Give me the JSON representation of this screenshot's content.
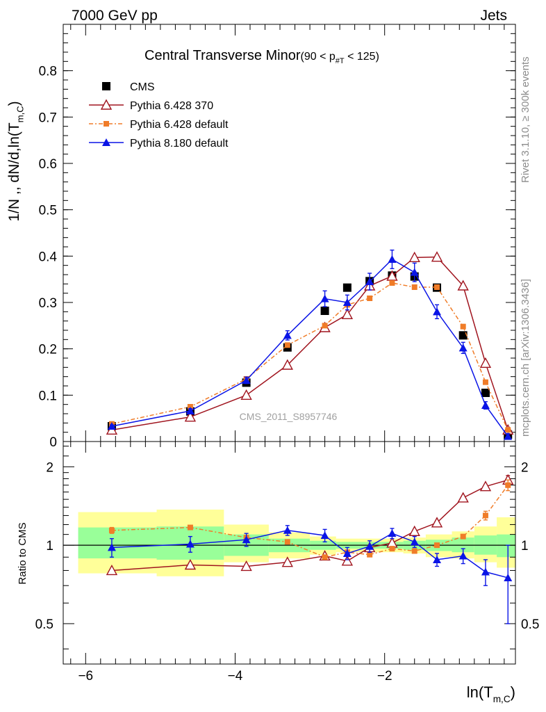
{
  "header": {
    "left": "7000 GeV pp",
    "right": "Jets"
  },
  "side_text": {
    "rivet": "Rivet 3.1.10, ≥ 300k events",
    "mcplots": "mcplots.cern.ch [arXiv:1306.3436]"
  },
  "watermark": "CMS_2011_S8957746",
  "colors": {
    "cms": "#000000",
    "p6_370": "#a0141e",
    "p6_default": "#f07c28",
    "p8_default": "#0a14e6",
    "band_inner": "#99ff99",
    "band_outer": "#ffff99"
  },
  "chart_data": [
    {
      "type": "line",
      "title": "Central Transverse Minor",
      "title_suffix": "(90 < p_#T  < 125)",
      "xlabel": "ln(T_m,C)",
      "ylabel": "1/N ,, dN/d,ln(T_m,C)",
      "xlim": [
        -6.3,
        -0.25
      ],
      "ylim": [
        0,
        0.9
      ],
      "yticks": [
        0,
        0.1,
        0.2,
        0.3,
        0.4,
        0.5,
        0.6,
        0.7,
        0.8
      ],
      "ytick_labels": [
        "0",
        "0.1",
        "0.2",
        "0.3",
        "0.4",
        "0.5",
        "0.6",
        "0.7",
        "0.8"
      ],
      "legend_position": "top-left",
      "series": [
        {
          "name": "CMS",
          "marker": "square",
          "x": [
            -5.65,
            -4.6,
            -3.85,
            -3.3,
            -2.8,
            -2.5,
            -2.2,
            -1.9,
            -1.6,
            -1.3,
            -0.95,
            -0.65,
            -0.35
          ],
          "y": [
            0.033,
            0.065,
            0.127,
            0.203,
            0.282,
            0.332,
            0.346,
            0.358,
            0.356,
            0.332,
            0.229,
            0.105,
            0.015
          ],
          "err": [
            0,
            0,
            0,
            0,
            0,
            0,
            0,
            0,
            0,
            0,
            0,
            0,
            0
          ]
        },
        {
          "name": "Pythia 6.428 370",
          "marker": "open-triangle",
          "x": [
            -5.65,
            -4.6,
            -3.85,
            -3.3,
            -2.8,
            -2.5,
            -2.2,
            -1.9,
            -1.6,
            -1.3,
            -0.95,
            -0.65,
            -0.35
          ],
          "y": [
            0.025,
            0.053,
            0.1,
            0.165,
            0.246,
            0.274,
            0.336,
            0.357,
            0.397,
            0.398,
            0.336,
            0.169,
            0.025
          ],
          "err": [
            0,
            0,
            0,
            0,
            0,
            0,
            0,
            0,
            0,
            0,
            0,
            0,
            0
          ]
        },
        {
          "name": "Pythia 6.428 default",
          "marker": "small-square",
          "dashed": true,
          "x": [
            -5.65,
            -4.6,
            -3.85,
            -3.3,
            -2.8,
            -2.5,
            -2.2,
            -1.9,
            -1.6,
            -1.3,
            -0.95,
            -0.65,
            -0.35
          ],
          "y": [
            0.038,
            0.075,
            0.135,
            0.208,
            0.25,
            0.295,
            0.309,
            0.342,
            0.333,
            0.333,
            0.248,
            0.128,
            0.025
          ],
          "err": [
            0,
            0,
            0,
            0,
            0,
            0,
            0,
            0,
            0,
            0,
            0,
            0,
            0
          ]
        },
        {
          "name": "Pythia 8.180 default",
          "marker": "triangle",
          "x": [
            -5.65,
            -4.6,
            -3.85,
            -3.3,
            -2.8,
            -2.5,
            -2.2,
            -1.9,
            -1.6,
            -1.3,
            -0.95,
            -0.65,
            -0.35
          ],
          "y": [
            0.033,
            0.066,
            0.132,
            0.229,
            0.308,
            0.3,
            0.345,
            0.393,
            0.365,
            0.28,
            0.202,
            0.078,
            0.011
          ],
          "err": [
            0.003,
            0.005,
            0.007,
            0.01,
            0.017,
            0.016,
            0.018,
            0.02,
            0.02,
            0.015,
            0.012,
            0.008,
            0.006
          ]
        }
      ]
    },
    {
      "type": "line",
      "xlabel": "ln(T_m,C)",
      "ylabel": "Ratio to CMS",
      "xlim": [
        -6.3,
        -0.25
      ],
      "ylim": [
        0.35,
        2.5
      ],
      "log_y": true,
      "xticks": [
        -6,
        -4,
        -2
      ],
      "xtick_labels": [
        "−6",
        "−4",
        "−2"
      ],
      "yticks": [
        0.5,
        1,
        2
      ],
      "ytick_labels": [
        "0.5",
        "1",
        "2"
      ],
      "bands": [
        {
          "x0": -6.1,
          "x1": -5.05,
          "inner": [
            0.89,
            1.17
          ],
          "outer": [
            0.78,
            1.34
          ]
        },
        {
          "x0": -5.05,
          "x1": -4.15,
          "inner": [
            0.88,
            1.18
          ],
          "outer": [
            0.76,
            1.37
          ]
        },
        {
          "x0": -4.15,
          "x1": -3.55,
          "inner": [
            0.91,
            1.1
          ],
          "outer": [
            0.86,
            1.2
          ]
        },
        {
          "x0": -3.55,
          "x1": -3.0,
          "inner": [
            0.94,
            1.06
          ],
          "outer": [
            0.89,
            1.12
          ]
        },
        {
          "x0": -3.0,
          "x1": -2.65,
          "inner": [
            0.96,
            1.04
          ],
          "outer": [
            0.92,
            1.08
          ]
        },
        {
          "x0": -2.65,
          "x1": -2.35,
          "inner": [
            0.97,
            1.03
          ],
          "outer": [
            0.94,
            1.06
          ]
        },
        {
          "x0": -2.35,
          "x1": -1.75,
          "inner": [
            0.97,
            1.03
          ],
          "outer": [
            0.94,
            1.06
          ]
        },
        {
          "x0": -1.75,
          "x1": -1.45,
          "inner": [
            0.96,
            1.04
          ],
          "outer": [
            0.93,
            1.07
          ]
        },
        {
          "x0": -1.45,
          "x1": -1.1,
          "inner": [
            0.95,
            1.05
          ],
          "outer": [
            0.9,
            1.1
          ]
        },
        {
          "x0": -1.1,
          "x1": -0.8,
          "inner": [
            0.94,
            1.07
          ],
          "outer": [
            0.89,
            1.13
          ]
        },
        {
          "x0": -0.8,
          "x1": -0.5,
          "inner": [
            0.92,
            1.09
          ],
          "outer": [
            0.86,
            1.18
          ]
        },
        {
          "x0": -0.5,
          "x1": -0.25,
          "inner": [
            0.9,
            1.1
          ],
          "outer": [
            0.82,
            1.28
          ]
        }
      ],
      "series": [
        {
          "name": "Pythia 6.428 370",
          "x": [
            -5.65,
            -4.6,
            -3.85,
            -3.3,
            -2.8,
            -2.5,
            -2.2,
            -1.9,
            -1.6,
            -1.3,
            -0.95,
            -0.65,
            -0.35
          ],
          "y": [
            0.8,
            0.84,
            0.83,
            0.86,
            0.91,
            0.87,
            0.98,
            1.02,
            1.13,
            1.22,
            1.52,
            1.68,
            1.78
          ],
          "err": [
            0,
            0,
            0,
            0,
            0,
            0,
            0,
            0,
            0,
            0,
            0,
            0,
            0.07
          ]
        },
        {
          "name": "Pythia 6.428 default",
          "x": [
            -5.65,
            -4.6,
            -3.85,
            -3.3,
            -2.8,
            -2.5,
            -2.2,
            -1.9,
            -1.6,
            -1.3,
            -0.95,
            -0.65,
            -0.35
          ],
          "y": [
            1.14,
            1.17,
            1.07,
            1.03,
            0.9,
            0.94,
            0.92,
            0.97,
            0.95,
            1.0,
            1.08,
            1.3,
            1.7
          ],
          "err": [
            0.03,
            0.02,
            0,
            0,
            0,
            0,
            0,
            0,
            0,
            0,
            0,
            0.05,
            0.08
          ]
        },
        {
          "name": "Pythia 8.180 default",
          "x": [
            -5.65,
            -4.6,
            -3.85,
            -3.3,
            -2.8,
            -2.5,
            -2.2,
            -1.9,
            -1.6,
            -1.3,
            -0.95,
            -0.65,
            -0.35
          ],
          "y": [
            0.98,
            1.01,
            1.05,
            1.14,
            1.09,
            0.93,
            0.99,
            1.11,
            1.03,
            0.88,
            0.91,
            0.79,
            0.75
          ],
          "err": [
            0.08,
            0.07,
            0.06,
            0.05,
            0.06,
            0.05,
            0.05,
            0.05,
            0.05,
            0.05,
            0.06,
            0.09,
            0.25
          ]
        }
      ]
    }
  ]
}
